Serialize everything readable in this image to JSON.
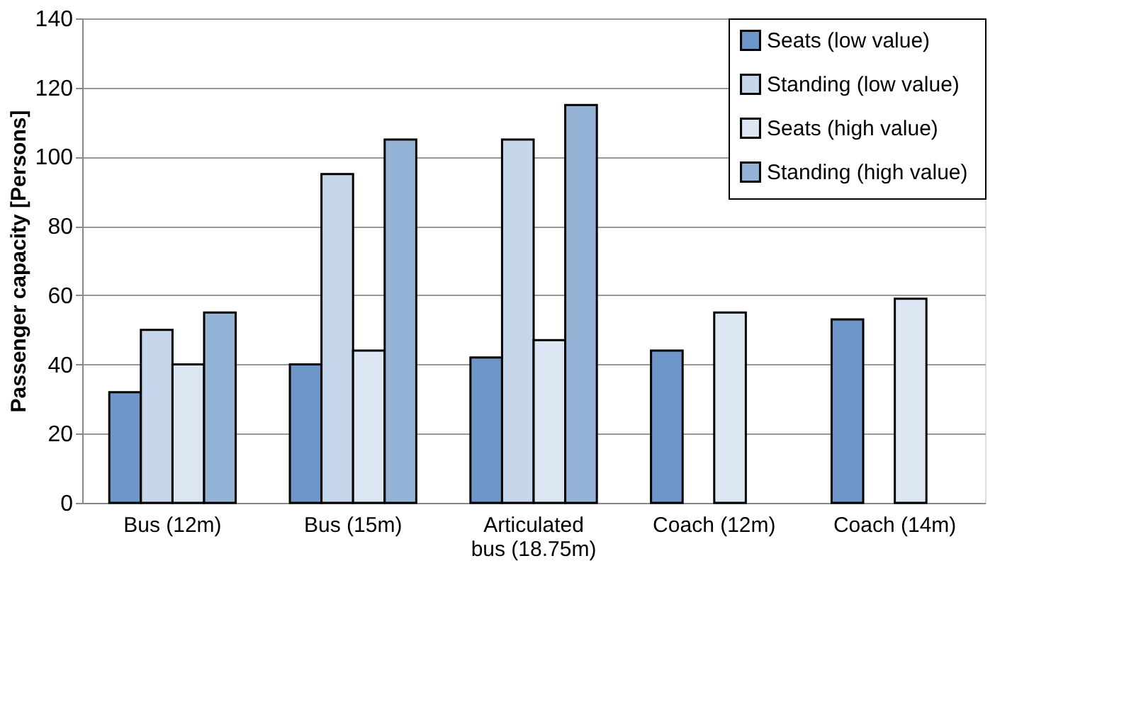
{
  "chart_data": {
    "type": "bar",
    "ylabel": "Passenger capacity [Persons]",
    "categories": [
      "Bus (12m)",
      "Bus (15m)",
      "Articulated\nbus (18.75m)",
      "Coach (12m)",
      "Coach (14m)"
    ],
    "series": [
      {
        "name": "Seats (low value)",
        "color": "#6f96c8",
        "values": [
          32,
          40,
          42,
          44,
          53
        ]
      },
      {
        "name": "Standing  (low value)",
        "color": "#c6d7ec",
        "values": [
          50,
          95,
          105,
          null,
          null
        ]
      },
      {
        "name": "Seats (high value)",
        "color": "#dde7f3",
        "values": [
          40,
          44,
          47,
          55,
          59
        ]
      },
      {
        "name": "Standing  (high value)",
        "color": "#95b3d7",
        "values": [
          55,
          105,
          115,
          null,
          null
        ]
      }
    ],
    "ylim": [
      0,
      140
    ],
    "yticks": [
      0,
      20,
      40,
      60,
      80,
      100,
      120,
      140
    ],
    "grid": "y",
    "legend": "top right"
  }
}
